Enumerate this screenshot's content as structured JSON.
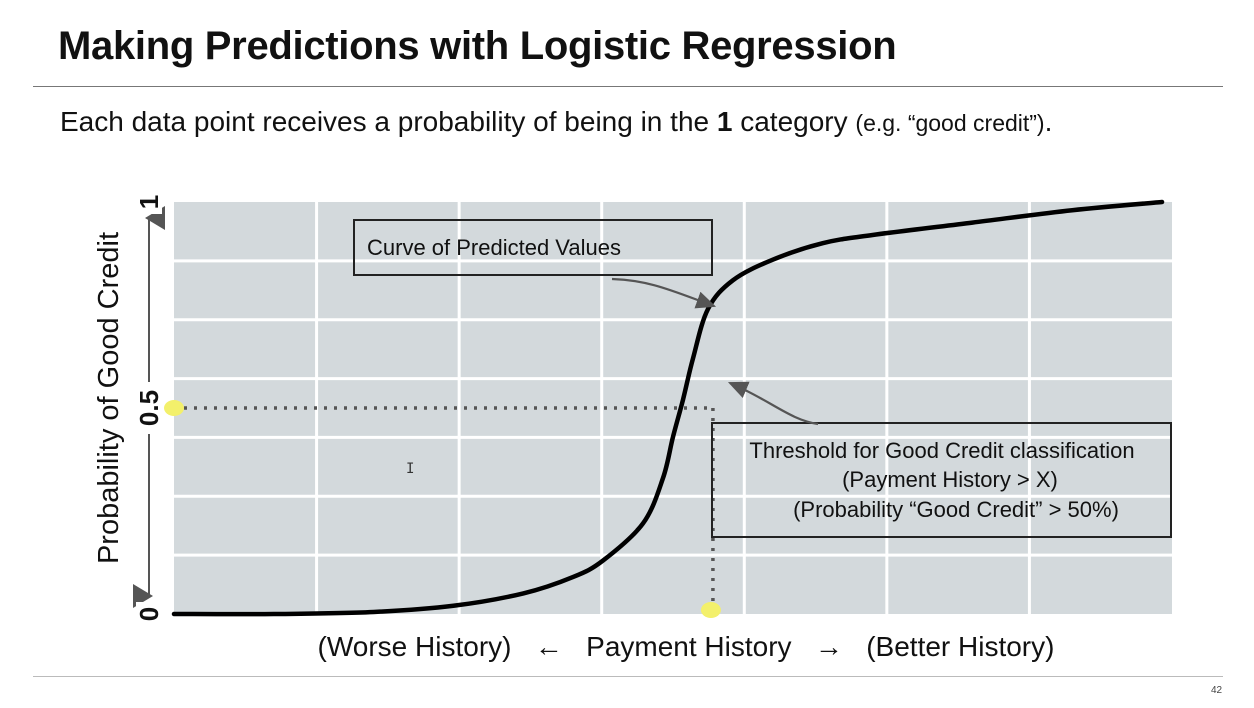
{
  "slide": {
    "title": "Making Predictions with Logistic Regression",
    "subtitle_pre": "Each data point receives a probability of being in the ",
    "subtitle_bold": "1",
    "subtitle_mid": " category ",
    "subtitle_small": "(e.g. “good credit”)",
    "subtitle_end": ".",
    "page_number": "42"
  },
  "chart_data": {
    "type": "line",
    "title": "",
    "xlabel": "(Worse History)   ←   Payment History   →   (Better History)",
    "ylabel": "Probability of Good Credit",
    "ylim": [
      0,
      1
    ],
    "yticks": [
      {
        "value": 0,
        "label": "0"
      },
      {
        "value": 0.5,
        "label": "0.5"
      },
      {
        "value": 1,
        "label": "1"
      }
    ],
    "x_tick_labels": [],
    "grid": true,
    "xlim": [
      0,
      1
    ],
    "series": [
      {
        "x": [
          0.0,
          0.1,
          0.2,
          0.28,
          0.35,
          0.4,
          0.43,
          0.47,
          0.49,
          0.5,
          0.51,
          0.52,
          0.535,
          0.56,
          0.6,
          0.65,
          0.7,
          0.8,
          0.9,
          0.99
        ],
        "y": [
          0.0,
          0.0,
          0.005,
          0.02,
          0.05,
          0.09,
          0.13,
          0.22,
          0.33,
          0.43,
          0.52,
          0.62,
          0.74,
          0.81,
          0.86,
          0.9,
          0.92,
          0.95,
          0.98,
          1.0
        ]
      }
    ],
    "threshold": {
      "x": 0.54,
      "y": 0.5
    },
    "annotations": [
      {
        "text": "Curve of Predicted Values"
      },
      {
        "lines": [
          "Threshold for Good Credit classification",
          "(Payment History > X)",
          "(Probability “Good Credit” > 50%)"
        ]
      }
    ],
    "colors": {
      "plot_bg": "#d3d9dc",
      "grid": "#ffffff",
      "curve": "#000000",
      "highlight": "#f3f06b",
      "dotted": "#555555",
      "arrow": "#555555"
    }
  }
}
